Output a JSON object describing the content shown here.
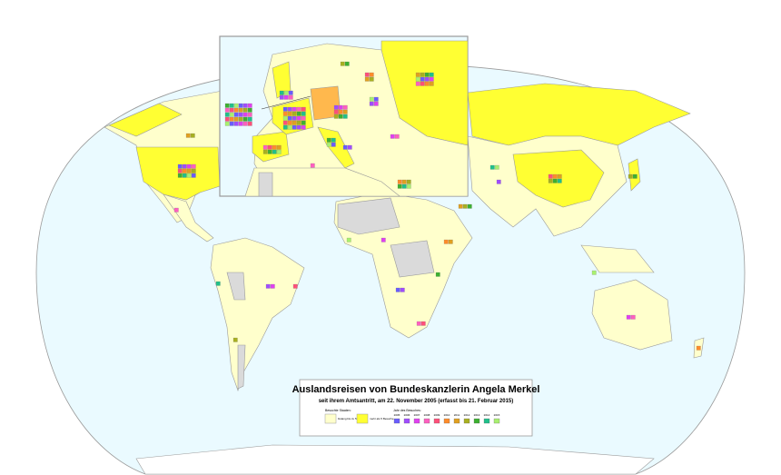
{
  "legend": {
    "title": "Auslandsreisen von Bundeskanzlerin Angela Merkel",
    "subtitle": "seit ihrem Amtsantritt, am 22. November 2005 (erfasst bis 21. Februar 2015)",
    "states_heading": "Besuchte Staaten:",
    "few_visits": "bislang bis zu 5 Besuche",
    "many_visits": "mehr als 5 Besuche",
    "years_heading": "Jahr des Besuches:",
    "years": [
      {
        "label": "2005",
        "color": "#6a5cff"
      },
      {
        "label": "2006",
        "color": "#a04cff"
      },
      {
        "label": "2007",
        "color": "#e040f0"
      },
      {
        "label": "2008",
        "color": "#ff5fc0"
      },
      {
        "label": "2009",
        "color": "#ff4f7a"
      },
      {
        "label": "2010",
        "color": "#ff8c2a"
      },
      {
        "label": "2011",
        "color": "#e0a020"
      },
      {
        "label": "2012",
        "color": "#a8b020"
      },
      {
        "label": "2013",
        "color": "#3cb030"
      },
      {
        "label": "2014",
        "color": "#20c08a"
      },
      {
        "label": "2015",
        "color": "#a8f070"
      }
    ]
  }
}
